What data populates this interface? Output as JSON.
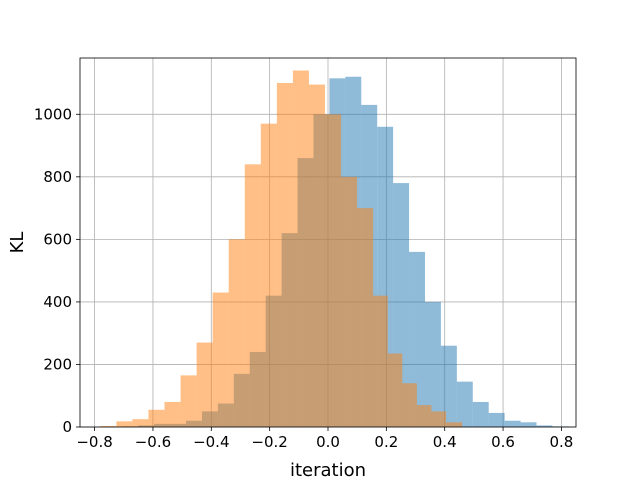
{
  "chart_data": {
    "type": "histogram",
    "xlabel": "iteration",
    "ylabel": "KL",
    "xlim": [
      -0.85,
      0.85
    ],
    "ylim": [
      0,
      1180
    ],
    "grid": true,
    "xticks": [
      -0.8,
      -0.6,
      -0.4,
      -0.2,
      0.0,
      0.2,
      0.4,
      0.6,
      0.8
    ],
    "xtick_labels": [
      "−0.8",
      "−0.6",
      "−0.4",
      "−0.2",
      "0.0",
      "0.2",
      "0.4",
      "0.6",
      "0.8"
    ],
    "yticks": [
      0,
      200,
      400,
      600,
      800,
      1000
    ],
    "ytick_labels": [
      "0",
      "200",
      "400",
      "600",
      "800",
      "1000"
    ],
    "series": [
      {
        "color": "#1f77b4",
        "alpha": 0.5,
        "bin_edges": [
          -0.705,
          -0.6504,
          -0.5958,
          -0.5412,
          -0.4866,
          -0.432,
          -0.3774,
          -0.3228,
          -0.2682,
          -0.2136,
          -0.159,
          -0.1044,
          -0.0498,
          0.0048,
          0.0594,
          0.114,
          0.1686,
          0.2232,
          0.2778,
          0.3324,
          0.387,
          0.4416,
          0.4962,
          0.5508,
          0.6054,
          0.66,
          0.7146,
          0.7692,
          0.8238
        ],
        "counts": [
          2,
          5,
          10,
          10,
          20,
          50,
          75,
          170,
          240,
          420,
          620,
          860,
          1000,
          1115,
          1120,
          1030,
          960,
          780,
          560,
          400,
          260,
          145,
          80,
          45,
          20,
          15,
          5,
          2
        ]
      },
      {
        "color": "#ff7f0e",
        "alpha": 0.5,
        "bin_edges": [
          -0.7803,
          -0.7253,
          -0.6703,
          -0.6153,
          -0.5603,
          -0.5053,
          -0.4503,
          -0.3953,
          -0.3403,
          -0.2853,
          -0.2303,
          -0.1753,
          -0.1203,
          -0.0653,
          -0.0103,
          0.0447,
          0.0997,
          0.1547,
          0.2047,
          0.2547,
          0.3047,
          0.3547,
          0.4047,
          0.4597
        ],
        "counts": [
          3,
          18,
          25,
          55,
          80,
          165,
          270,
          430,
          600,
          840,
          970,
          1100,
          1140,
          1095,
          1000,
          800,
          700,
          420,
          235,
          140,
          70,
          50,
          15
        ]
      }
    ]
  }
}
